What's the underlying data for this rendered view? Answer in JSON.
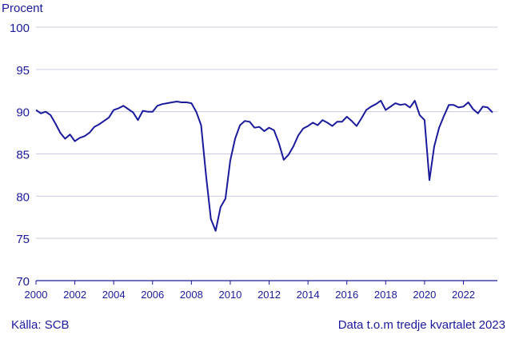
{
  "chart_data": {
    "type": "line",
    "ylabel": "Procent",
    "ylim": [
      70,
      100
    ],
    "yticks": [
      "70",
      "75",
      "80",
      "85",
      "90",
      "95",
      "100"
    ],
    "xlim": [
      2000,
      2023.75
    ],
    "xticks": [
      "2000",
      "2002",
      "2004",
      "2006",
      "2008",
      "2010",
      "2012",
      "2014",
      "2016",
      "2018",
      "2020",
      "2022"
    ],
    "grid": "horizontal",
    "line_color": "#1a1a9c",
    "grid_color": "#c9c9e4",
    "series": [
      {
        "x": [
          2000.0,
          2000.25,
          2000.5,
          2000.75,
          2001.0,
          2001.25,
          2001.5,
          2001.75,
          2002.0,
          2002.25,
          2002.5,
          2002.75,
          2003.0,
          2003.25,
          2003.5,
          2003.75,
          2004.0,
          2004.25,
          2004.5,
          2004.75,
          2005.0,
          2005.25,
          2005.5,
          2005.75,
          2006.0,
          2006.25,
          2006.5,
          2006.75,
          2007.0,
          2007.25,
          2007.5,
          2007.75,
          2008.0,
          2008.25,
          2008.5,
          2008.75,
          2009.0,
          2009.25,
          2009.5,
          2009.75,
          2010.0,
          2010.25,
          2010.5,
          2010.75,
          2011.0,
          2011.25,
          2011.5,
          2011.75,
          2012.0,
          2012.25,
          2012.5,
          2012.75,
          2013.0,
          2013.25,
          2013.5,
          2013.75,
          2014.0,
          2014.25,
          2014.5,
          2014.75,
          2015.0,
          2015.25,
          2015.5,
          2015.75,
          2016.0,
          2016.25,
          2016.5,
          2016.75,
          2017.0,
          2017.25,
          2017.5,
          2017.75,
          2018.0,
          2018.25,
          2018.5,
          2018.75,
          2019.0,
          2019.25,
          2019.5,
          2019.75,
          2020.0,
          2020.25,
          2020.5,
          2020.75,
          2021.0,
          2021.25,
          2021.5,
          2021.75,
          2022.0,
          2022.25,
          2022.5,
          2022.75,
          2023.0,
          2023.25,
          2023.5
        ],
        "y": [
          90.2,
          89.8,
          90.0,
          89.6,
          88.6,
          87.5,
          86.8,
          87.3,
          86.5,
          86.9,
          87.1,
          87.5,
          88.2,
          88.5,
          88.9,
          89.3,
          90.2,
          90.4,
          90.7,
          90.3,
          89.9,
          89.0,
          90.1,
          90.0,
          90.0,
          90.7,
          90.9,
          91.0,
          91.1,
          91.2,
          91.1,
          91.1,
          91.0,
          90.0,
          88.4,
          82.5,
          77.3,
          75.9,
          78.7,
          79.7,
          84.2,
          86.8,
          88.4,
          88.9,
          88.8,
          88.1,
          88.2,
          87.7,
          88.1,
          87.8,
          86.3,
          84.3,
          84.9,
          85.9,
          87.2,
          88.0,
          88.3,
          88.7,
          88.4,
          89.0,
          88.7,
          88.3,
          88.8,
          88.8,
          89.4,
          88.9,
          88.3,
          89.2,
          90.2,
          90.6,
          90.9,
          91.3,
          90.2,
          90.6,
          91.0,
          90.8,
          90.9,
          90.5,
          91.3,
          89.6,
          89.0,
          81.9,
          85.9,
          88.1,
          89.5,
          90.8,
          90.8,
          90.5,
          90.6,
          91.1,
          90.3,
          89.8,
          90.6,
          90.5,
          89.9
        ]
      }
    ]
  },
  "footer": {
    "source": "Källa: SCB",
    "note": "Data t.o.m tredje kvartalet 2023"
  }
}
